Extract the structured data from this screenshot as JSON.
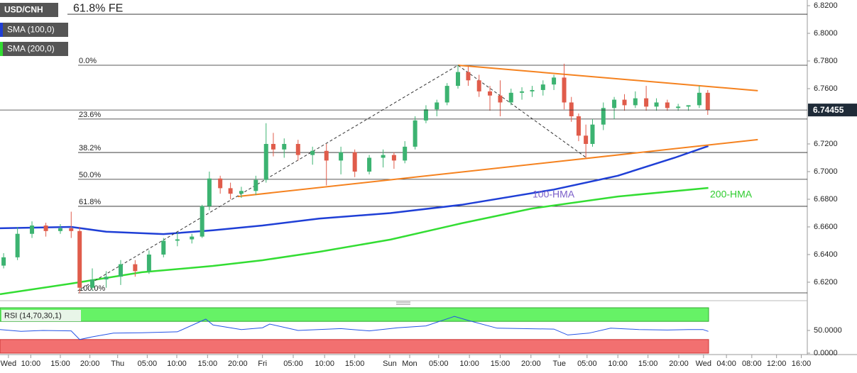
{
  "chart_data": {
    "type": "candlestick",
    "title": "USD/CNH",
    "up_color": "#3cb371",
    "down_color": "#e05c4b",
    "candles": {
      "x": [
        0.6,
        2.9,
        5.3,
        7.6,
        10.0,
        11.8,
        13.2,
        15.3,
        17.6,
        20.0,
        22.4,
        24.7,
        27.1,
        29.4,
        31.8,
        33.5,
        34.7,
        36.5,
        38.2,
        40.0,
        42.4,
        44.1,
        45.3,
        47.1,
        49.4,
        51.8,
        54.1,
        56.5,
        58.8,
        61.2,
        63.5,
        65.3,
        67.1,
        68.8,
        70.6,
        72.4,
        74.1,
        75.9,
        77.6,
        79.4,
        81.2,
        82.9,
        84.7,
        86.5,
        88.2,
        90.0,
        91.8,
        93.5,
        94.7,
        95.9,
        97.1,
        98.2,
        100.0,
        101.8,
        103.5,
        105.3,
        107.1,
        108.8,
        110.6,
        112.4,
        114.1,
        115.9,
        117.3
      ],
      "open": [
        6.632,
        6.638,
        6.655,
        6.661,
        6.657,
        6.659,
        6.657,
        6.616,
        6.622,
        6.624,
        6.633,
        6.628,
        6.64,
        6.65,
        6.651,
        6.653,
        6.675,
        6.695,
        6.688,
        6.684,
        6.686,
        6.694,
        6.72,
        6.716,
        6.72,
        6.712,
        6.715,
        6.708,
        6.714,
        6.7,
        6.71,
        6.712,
        6.708,
        6.718,
        6.737,
        6.745,
        6.75,
        6.762,
        6.772,
        6.766,
        6.758,
        6.755,
        6.75,
        6.757,
        6.758,
        6.759,
        6.763,
        6.768,
        6.75,
        6.74,
        6.726,
        6.72,
        6.734,
        6.746,
        6.752,
        6.748,
        6.753,
        6.747,
        6.75,
        6.746,
        6.747,
        6.748,
        6.757
      ],
      "high": [
        6.641,
        6.66,
        6.664,
        6.663,
        6.662,
        6.671,
        6.66,
        6.63,
        6.628,
        6.636,
        6.636,
        6.643,
        6.652,
        6.656,
        6.655,
        6.676,
        6.7,
        6.697,
        6.692,
        6.689,
        6.697,
        6.735,
        6.728,
        6.724,
        6.723,
        6.718,
        6.72,
        6.718,
        6.716,
        6.712,
        6.716,
        6.714,
        6.722,
        6.74,
        6.748,
        6.752,
        6.764,
        6.777,
        6.776,
        6.77,
        6.762,
        6.766,
        6.76,
        6.761,
        6.762,
        6.766,
        6.77,
        6.778,
        6.754,
        6.742,
        6.734,
        6.738,
        6.75,
        6.754,
        6.756,
        6.758,
        6.762,
        6.753,
        6.752,
        6.749,
        6.748,
        6.762,
        6.759
      ],
      "low": [
        6.63,
        6.636,
        6.652,
        6.653,
        6.655,
        6.652,
        6.612,
        6.614,
        6.616,
        6.618,
        6.624,
        6.626,
        6.638,
        6.646,
        6.648,
        6.652,
        6.672,
        6.684,
        6.68,
        6.681,
        6.683,
        6.692,
        6.711,
        6.71,
        6.708,
        6.705,
        6.69,
        6.698,
        6.696,
        6.698,
        6.703,
        6.702,
        6.706,
        6.716,
        6.735,
        6.74,
        6.748,
        6.76,
        6.762,
        6.754,
        6.744,
        6.74,
        6.748,
        6.752,
        6.754,
        6.755,
        6.759,
        6.745,
        6.736,
        6.722,
        6.71,
        6.718,
        6.73,
        6.738,
        6.744,
        6.746,
        6.744,
        6.744,
        6.744,
        6.744,
        6.744,
        6.746,
        6.741
      ],
      "close": [
        6.638,
        6.655,
        6.661,
        6.657,
        6.659,
        6.657,
        6.616,
        6.622,
        6.624,
        6.633,
        6.628,
        6.64,
        6.65,
        6.651,
        6.653,
        6.675,
        6.695,
        6.688,
        6.684,
        6.686,
        6.694,
        6.72,
        6.716,
        6.72,
        6.712,
        6.715,
        6.708,
        6.714,
        6.7,
        6.71,
        6.712,
        6.708,
        6.718,
        6.737,
        6.745,
        6.75,
        6.762,
        6.772,
        6.766,
        6.758,
        6.755,
        6.75,
        6.757,
        6.758,
        6.759,
        6.763,
        6.768,
        6.75,
        6.74,
        6.726,
        6.72,
        6.734,
        6.746,
        6.752,
        6.748,
        6.753,
        6.747,
        6.75,
        6.746,
        6.747,
        6.748,
        6.757,
        6.74455
      ]
    },
    "last_price": 6.74455,
    "series": [
      {
        "name": "SMA (100,0)",
        "annotation": "100-HMA",
        "color": "#1f3fd6",
        "label_color": "#7b5fc9",
        "x": [
          0,
          11.8,
          17.6,
          27.1,
          35.3,
          43.5,
          52.9,
          64.7,
          76.5,
          91.8,
          102.4,
          111.8,
          117.4
        ],
        "values": [
          6.659,
          6.66,
          6.6565,
          6.6548,
          6.6575,
          6.661,
          6.666,
          6.67,
          6.676,
          6.687,
          6.697,
          6.71,
          6.7185
        ]
      },
      {
        "name": "SMA (200,0)",
        "annotation": "200-HMA",
        "color": "#33dd33",
        "label_color": "#2ecc2e",
        "x": [
          0,
          11.8,
          23.5,
          35.3,
          43.5,
          52.9,
          64.7,
          76.5,
          88.2,
          102.4,
          117.4
        ],
        "values": [
          6.6113,
          6.619,
          6.6272,
          6.6318,
          6.6359,
          6.642,
          6.6508,
          6.6626,
          6.6733,
          6.682,
          6.6882
        ]
      }
    ],
    "trendlines": [
      {
        "color": "#f5821f",
        "x": [
          75.9,
          125.6
        ],
        "values": [
          6.7769,
          6.7585
        ]
      },
      {
        "color": "#f5821f",
        "x": [
          39.4,
          125.6
        ],
        "values": [
          6.682,
          6.7231
        ]
      }
    ],
    "swing_path": {
      "color": "#333333",
      "x": [
        12.9,
        75.9,
        97.1
      ],
      "values": [
        6.6138,
        6.7769,
        6.7103
      ]
    },
    "fibonacci": {
      "levels": [
        {
          "label": "0.0%",
          "value": 6.7769
        },
        {
          "label": "23.6%",
          "value": 6.738
        },
        {
          "label": "38.2%",
          "value": 6.7138
        },
        {
          "label": "50.0%",
          "value": 6.6944
        },
        {
          "label": "61.8%",
          "value": 6.6749
        },
        {
          "label": "100.0%",
          "value": 6.6123
        }
      ],
      "extension": {
        "label": "61.8% FE",
        "value": 6.8138
      }
    },
    "xlim": [
      0,
      133.8
    ],
    "ylim": [
      6.6087,
      6.8241
    ],
    "yticks": [
      {
        "value": 6.82,
        "label": "6.8200"
      },
      {
        "value": 6.8,
        "label": "6.8000"
      },
      {
        "value": 6.78,
        "label": "6.7800"
      },
      {
        "value": 6.76,
        "label": "6.7600"
      },
      {
        "value": 6.72,
        "label": "6.7200"
      },
      {
        "value": 6.7,
        "label": "6.7000"
      },
      {
        "value": 6.68,
        "label": "6.6800"
      },
      {
        "value": 6.66,
        "label": "6.6600"
      },
      {
        "value": 6.64,
        "label": "6.6400"
      },
      {
        "value": 6.62,
        "label": "6.6200"
      }
    ],
    "xticks": [
      {
        "value": 1.4,
        "label": "Wed"
      },
      {
        "value": 5.1,
        "label": "10:00"
      },
      {
        "value": 10.0,
        "label": "15:00"
      },
      {
        "value": 14.9,
        "label": "20:00"
      },
      {
        "value": 19.5,
        "label": "Thu"
      },
      {
        "value": 24.4,
        "label": "05:00"
      },
      {
        "value": 29.3,
        "label": "10:00"
      },
      {
        "value": 34.4,
        "label": "15:00"
      },
      {
        "value": 39.4,
        "label": "20:00"
      },
      {
        "value": 43.5,
        "label": "Fri"
      },
      {
        "value": 48.6,
        "label": "05:00"
      },
      {
        "value": 53.8,
        "label": "10:00"
      },
      {
        "value": 58.8,
        "label": "15:00"
      },
      {
        "value": 64.6,
        "label": "Sun"
      },
      {
        "value": 67.9,
        "label": "Mon"
      },
      {
        "value": 72.7,
        "label": "05:00"
      },
      {
        "value": 77.8,
        "label": "10:00"
      },
      {
        "value": 82.9,
        "label": "15:00"
      },
      {
        "value": 88.0,
        "label": "20:00"
      },
      {
        "value": 92.7,
        "label": "Tue"
      },
      {
        "value": 97.3,
        "label": "05:00"
      },
      {
        "value": 102.4,
        "label": "10:00"
      },
      {
        "value": 107.4,
        "label": "15:00"
      },
      {
        "value": 112.5,
        "label": "20:00"
      },
      {
        "value": 116.6,
        "label": "Wed"
      },
      {
        "value": 120.4,
        "label": "04:00"
      },
      {
        "value": 124.6,
        "label": "08:00"
      },
      {
        "value": 128.7,
        "label": "12:00"
      },
      {
        "value": 132.8,
        "label": "16:00"
      }
    ],
    "rsi": {
      "title": "RSI (14,70,30,1)",
      "color": "#2453e6",
      "ylim": [
        0,
        100
      ],
      "yticks": [
        {
          "value": 50,
          "label": "50.0000"
        },
        {
          "value": 0,
          "label": "0.0000"
        }
      ],
      "overbought": 70,
      "oversold": 30,
      "x": [
        0,
        3.5,
        7.1,
        11.8,
        13.2,
        15.3,
        18.8,
        23.5,
        29.4,
        34.1,
        35.3,
        40.0,
        43.5,
        44.7,
        49.4,
        56.5,
        61.2,
        65.9,
        70.6,
        75.3,
        77.6,
        82.4,
        91.8,
        94.1,
        97.6,
        101.2,
        105.9,
        110.6,
        114.1,
        116.5,
        117.4
      ],
      "values": [
        52,
        48,
        50,
        49,
        30,
        36,
        44,
        45,
        47,
        75,
        62,
        52,
        56,
        64,
        50,
        54,
        49,
        56,
        60,
        81,
        72,
        55,
        53,
        40,
        44,
        55,
        52,
        51,
        52,
        52,
        48
      ]
    }
  }
}
